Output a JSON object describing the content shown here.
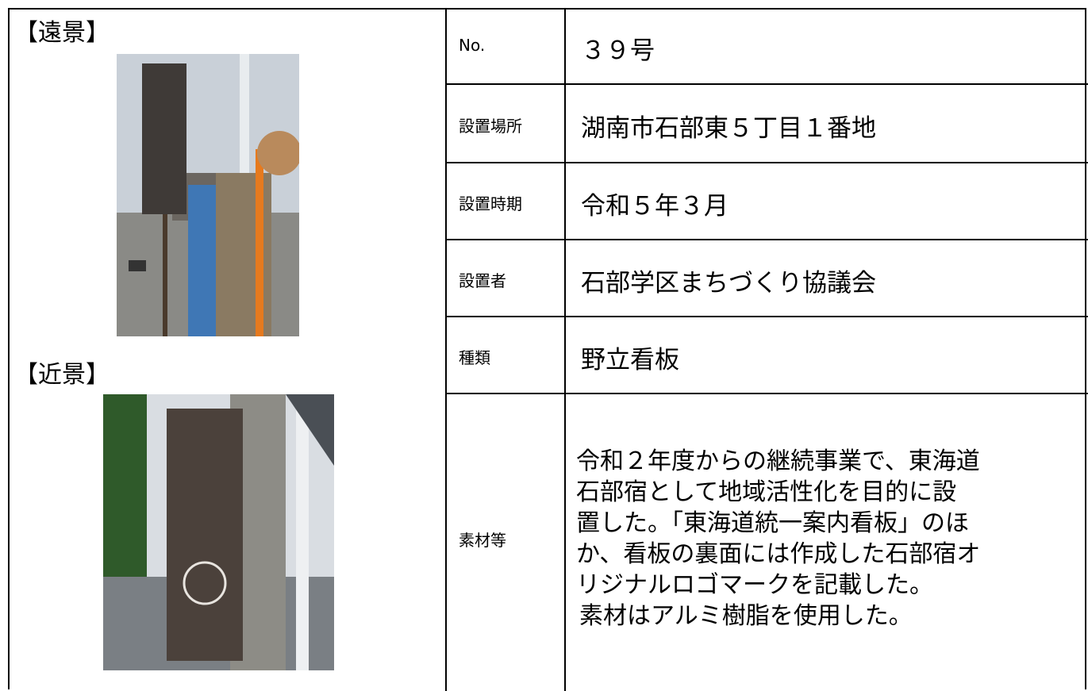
{
  "photos": {
    "far_label": "【遠景】",
    "near_label": "【近景】"
  },
  "table": {
    "rows": [
      [
        "No.",
        "３９号"
      ],
      [
        "設置場所",
        "湖南市石部東５丁目１番地"
      ],
      [
        "設置時期",
        "令和５年３月"
      ],
      [
        "設置者",
        "石部学区まちづくり協議会"
      ],
      [
        "種類",
        "野立看板"
      ]
    ],
    "notes": {
      "label": "素材等",
      "lines": [
        "令和２年度からの継続事業で、東海道",
        "石部宿として地域活性化を目的に設",
        "置した。「東海道統一案内看板」のほ",
        "か、看板の裏面には作成した石部宿オ",
        "リジナルロゴマークを記載した。",
        "素材はアルミ樹脂を使用した。"
      ]
    }
  }
}
